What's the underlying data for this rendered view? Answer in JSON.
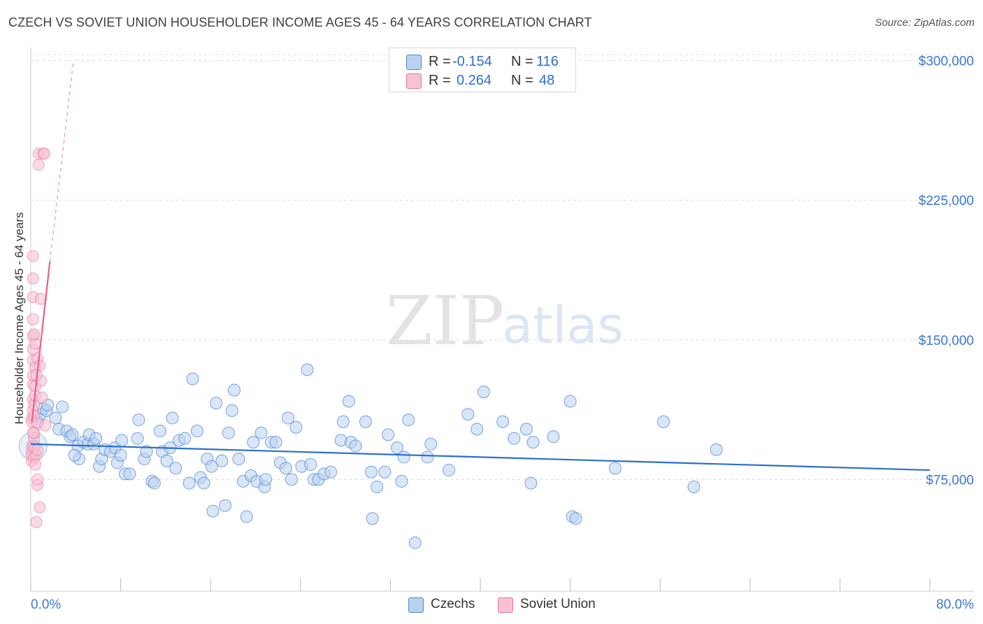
{
  "title": "CZECH VS SOVIET UNION HOUSEHOLDER INCOME AGES 45 - 64 YEARS CORRELATION CHART",
  "source": "Source: ZipAtlas.com",
  "watermark": {
    "zip": "ZIP",
    "atlas": "atlas"
  },
  "colors": {
    "czech": "#4f86d8",
    "czech_fill": "#b9d1f1",
    "soviet": "#e8739b",
    "soviet_fill": "#f6c2d4",
    "tick_text": "#3a78d4",
    "grid": "#dddddd"
  },
  "legend": {
    "rows": [
      {
        "r_label": "R =",
        "r_value": "-0.154",
        "n_label": "N =",
        "n_value": "116"
      },
      {
        "r_label": "R =",
        "r_value": "0.264",
        "n_label": "N =",
        "n_value": "48"
      }
    ]
  },
  "bottom_legend": {
    "czech": "Czechs",
    "soviet": "Soviet Union"
  },
  "chart_data": {
    "type": "scatter",
    "title": "CZECH VS SOVIET UNION HOUSEHOLDER INCOME AGES 45 - 64 YEARS CORRELATION CHART",
    "xlabel": "",
    "ylabel": "Householder Income Ages 45 - 64 years",
    "xlim": [
      0,
      80
    ],
    "ylim": [
      15000,
      307000
    ],
    "x_tick_labels": [
      "0.0%",
      "80.0%"
    ],
    "y_ticks": [
      75000,
      150000,
      225000,
      300000
    ],
    "y_tick_labels": [
      "$75,000",
      "$150,000",
      "$225,000",
      "$300,000"
    ],
    "grid": true,
    "series": [
      {
        "name": "Czechs",
        "r": -0.154,
        "n": 116,
        "trend": {
          "x": [
            0,
            80
          ],
          "y": [
            94000,
            80000
          ]
        },
        "points": [
          [
            0.3,
            93000
          ],
          [
            0.6,
            106000
          ],
          [
            0.9,
            110000
          ],
          [
            1.1,
            113000
          ],
          [
            1.4,
            112000
          ],
          [
            1.5,
            115000
          ],
          [
            2.2,
            108000
          ],
          [
            2.8,
            114000
          ],
          [
            2.5,
            102000
          ],
          [
            3.2,
            101000
          ],
          [
            3.5,
            98000
          ],
          [
            3.7,
            99000
          ],
          [
            4.2,
            93000
          ],
          [
            4.3,
            86000
          ],
          [
            4.7,
            95000
          ],
          [
            5.1,
            94000
          ],
          [
            5.2,
            99000
          ],
          [
            5.6,
            94000
          ],
          [
            5.8,
            97000
          ],
          [
            6.1,
            82000
          ],
          [
            6.3,
            86000
          ],
          [
            6.6,
            91000
          ],
          [
            7.1,
            90000
          ],
          [
            7.5,
            92000
          ],
          [
            7.7,
            84000
          ],
          [
            8.1,
            96000
          ],
          [
            8.4,
            78000
          ],
          [
            8.8,
            78000
          ],
          [
            9.5,
            97000
          ],
          [
            9.6,
            107000
          ],
          [
            10.1,
            86000
          ],
          [
            10.3,
            90000
          ],
          [
            10.8,
            74000
          ],
          [
            11.0,
            73000
          ],
          [
            11.5,
            101000
          ],
          [
            11.7,
            90000
          ],
          [
            12.1,
            85000
          ],
          [
            12.4,
            92000
          ],
          [
            12.6,
            108000
          ],
          [
            12.9,
            81000
          ],
          [
            13.2,
            96000
          ],
          [
            13.7,
            97000
          ],
          [
            14.1,
            73000
          ],
          [
            14.4,
            129000
          ],
          [
            14.8,
            101000
          ],
          [
            15.1,
            76000
          ],
          [
            15.4,
            73000
          ],
          [
            15.7,
            86000
          ],
          [
            16.1,
            82000
          ],
          [
            16.5,
            116000
          ],
          [
            16.2,
            58000
          ],
          [
            17.0,
            85000
          ],
          [
            17.3,
            61000
          ],
          [
            17.6,
            100000
          ],
          [
            17.9,
            112000
          ],
          [
            18.1,
            123000
          ],
          [
            18.5,
            86000
          ],
          [
            18.9,
            74000
          ],
          [
            19.2,
            55000
          ],
          [
            19.6,
            77000
          ],
          [
            19.8,
            95000
          ],
          [
            20.1,
            74000
          ],
          [
            20.5,
            100000
          ],
          [
            20.8,
            71000
          ],
          [
            20.9,
            75000
          ],
          [
            21.4,
            95000
          ],
          [
            21.8,
            95000
          ],
          [
            22.2,
            84000
          ],
          [
            22.7,
            81000
          ],
          [
            22.9,
            108000
          ],
          [
            23.2,
            75000
          ],
          [
            23.6,
            103000
          ],
          [
            24.1,
            82000
          ],
          [
            24.6,
            134000
          ],
          [
            24.9,
            83000
          ],
          [
            25.2,
            75000
          ],
          [
            25.6,
            75000
          ],
          [
            26.1,
            78000
          ],
          [
            26.7,
            79000
          ],
          [
            27.6,
            96000
          ],
          [
            27.8,
            106000
          ],
          [
            28.3,
            117000
          ],
          [
            28.5,
            95000
          ],
          [
            28.9,
            93000
          ],
          [
            29.8,
            106000
          ],
          [
            30.3,
            79000
          ],
          [
            30.4,
            54000
          ],
          [
            30.8,
            71000
          ],
          [
            31.5,
            79000
          ],
          [
            31.8,
            99000
          ],
          [
            32.6,
            92000
          ],
          [
            33.0,
            74000
          ],
          [
            33.2,
            87000
          ],
          [
            33.6,
            107000
          ],
          [
            34.2,
            41000
          ],
          [
            35.3,
            87000
          ],
          [
            35.6,
            94000
          ],
          [
            37.2,
            80000
          ],
          [
            38.9,
            110000
          ],
          [
            39.7,
            102000
          ],
          [
            40.3,
            122000
          ],
          [
            42.0,
            106000
          ],
          [
            43.0,
            97000
          ],
          [
            44.1,
            102000
          ],
          [
            44.5,
            73000
          ],
          [
            44.7,
            95000
          ],
          [
            48.0,
            117000
          ],
          [
            48.2,
            55000
          ],
          [
            48.5,
            54000
          ],
          [
            52.0,
            81000
          ],
          [
            56.3,
            106000
          ],
          [
            59.0,
            71000
          ],
          [
            61.0,
            91000
          ],
          [
            46.5,
            98000
          ],
          [
            8.0,
            88000
          ],
          [
            3.9,
            88000
          ]
        ]
      },
      {
        "name": "Soviet Union",
        "r": 0.264,
        "n": 48,
        "trend": {
          "x": [
            0.1,
            1.7
          ],
          "y": [
            106000,
            192000
          ],
          "extended": {
            "x": [
              1.7,
              3.8
            ],
            "y": [
              192000,
              300000
            ]
          }
        },
        "points": [
          [
            0.1,
            93000
          ],
          [
            0.1,
            90000
          ],
          [
            0.1,
            85000
          ],
          [
            0.1,
            88000
          ],
          [
            0.1,
            106000
          ],
          [
            0.1,
            108000
          ],
          [
            0.2,
            112000
          ],
          [
            0.2,
            118000
          ],
          [
            0.2,
            126000
          ],
          [
            0.2,
            131000
          ],
          [
            0.2,
            139000
          ],
          [
            0.2,
            145000
          ],
          [
            0.2,
            152000
          ],
          [
            0.2,
            161000
          ],
          [
            0.2,
            173000
          ],
          [
            0.2,
            183000
          ],
          [
            0.2,
            195000
          ],
          [
            0.3,
            87000
          ],
          [
            0.3,
            92000
          ],
          [
            0.3,
            97000
          ],
          [
            0.3,
            100000
          ],
          [
            0.3,
            109000
          ],
          [
            0.3,
            115000
          ],
          [
            0.4,
            120000
          ],
          [
            0.4,
            125000
          ],
          [
            0.4,
            135000
          ],
          [
            0.4,
            148000
          ],
          [
            0.5,
            88000
          ],
          [
            0.5,
            52000
          ],
          [
            0.6,
            91000
          ],
          [
            0.6,
            72000
          ],
          [
            0.6,
            75000
          ],
          [
            0.6,
            105000
          ],
          [
            0.6,
            140000
          ],
          [
            0.7,
            244000
          ],
          [
            0.7,
            250000
          ],
          [
            0.8,
            60000
          ],
          [
            0.8,
            136000
          ],
          [
            0.9,
            128000
          ],
          [
            0.9,
            172000
          ],
          [
            1.0,
            119000
          ],
          [
            1.1,
            250000
          ],
          [
            1.2,
            250000
          ],
          [
            1.3,
            104000
          ],
          [
            0.5,
            131000
          ],
          [
            0.4,
            83000
          ],
          [
            0.3,
            153000
          ],
          [
            0.2,
            100000
          ]
        ]
      }
    ]
  }
}
